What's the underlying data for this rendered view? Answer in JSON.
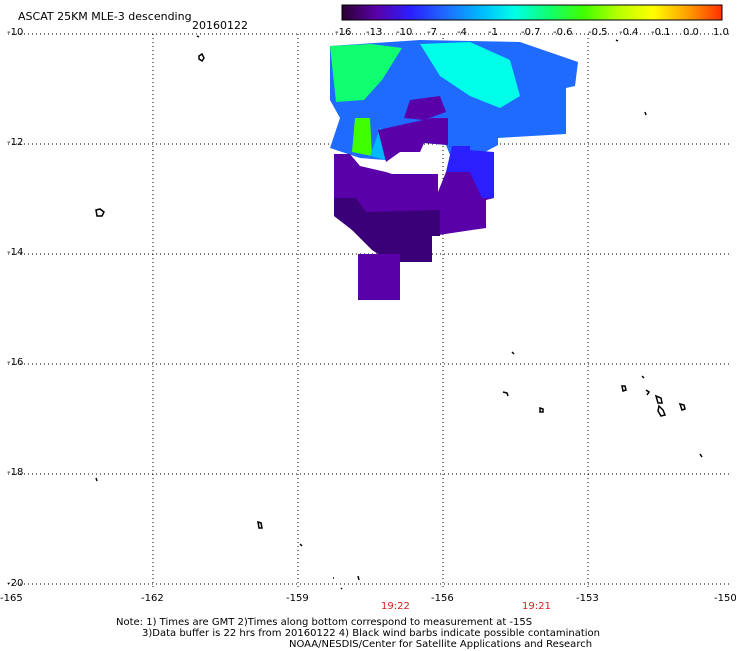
{
  "header": {
    "title": "ASCAT 25KM MLE-3 descending",
    "date": "20160122"
  },
  "colorbar": {
    "labels": [
      "-16",
      "-13",
      "-10",
      "-7",
      "-4",
      "-1",
      "-0.7",
      "-0.6",
      "-0.5",
      "-0.4",
      "-0.1",
      "0.0",
      "1.0"
    ],
    "colors": [
      "#2a0030",
      "#5a00a8",
      "#2a20ff",
      "#1f6aff",
      "#00b8ff",
      "#00ffe8",
      "#10ff70",
      "#40ff00",
      "#b8ff00",
      "#ffff00",
      "#ffa000",
      "#ff3000"
    ]
  },
  "axes": {
    "lat_labels": [
      "-10",
      "-12",
      "-14",
      "-16",
      "-18",
      "-20"
    ],
    "lon_labels": [
      "-165",
      "-162",
      "-159",
      "-156",
      "-153",
      "-150"
    ],
    "lon_range": [
      -165,
      -150
    ],
    "lat_range": [
      -10,
      -20
    ]
  },
  "times": [
    "19:22",
    "19:21"
  ],
  "note": {
    "line1": "Note: 1) Times are GMT 2)Times along bottom correspond to measurement at -15S",
    "line2": "3)Data buffer is 22 hrs from 20160122 4) Black wind barbs indicate possible contamination",
    "line3": "NOAA/NESDIS/Center for Satellite Applications and Research"
  },
  "colors": {
    "grid": "#000000",
    "time_labels": "#d81e1e"
  }
}
